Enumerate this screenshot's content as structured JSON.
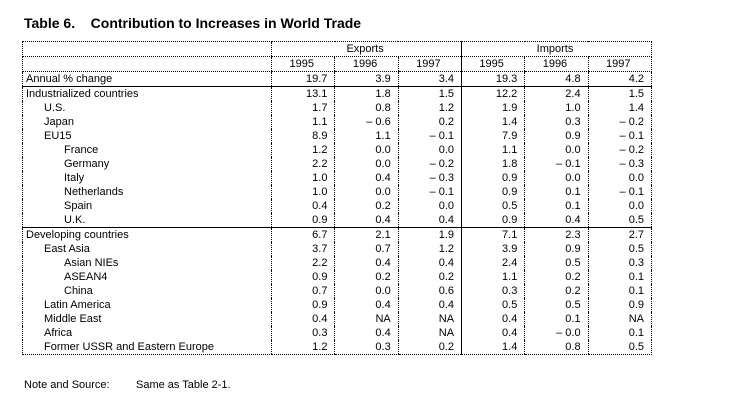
{
  "title": "Table 6.    Contribution to Increases in World Trade",
  "groups": {
    "exports": "Exports",
    "imports": "Imports"
  },
  "years": [
    "1995",
    "1996",
    "1997",
    "1995",
    "1996",
    "1997"
  ],
  "rows": [
    {
      "label": "Annual % change",
      "level": 0,
      "values": [
        "19.7",
        "3.9",
        "3.4",
        "19.3",
        "4.8",
        "4.2"
      ]
    },
    {
      "label": "Industrialized countries",
      "level": 0,
      "values": [
        "13.1",
        "1.8",
        "1.5",
        "12.2",
        "2.4",
        "1.5"
      ]
    },
    {
      "label": "U.S.",
      "level": 1,
      "values": [
        "1.7",
        "0.8",
        "1.2",
        "1.9",
        "1.0",
        "1.4"
      ]
    },
    {
      "label": "Japan",
      "level": 1,
      "values": [
        "1.1",
        "– 0.6",
        "0.2",
        "1.4",
        "0.3",
        "– 0.2"
      ]
    },
    {
      "label": "EU15",
      "level": 1,
      "values": [
        "8.9",
        "1.1",
        "– 0.1",
        "7.9",
        "0.9",
        "– 0.1"
      ]
    },
    {
      "label": "France",
      "level": 2,
      "values": [
        "1.2",
        "0.0",
        "0.0",
        "1.1",
        "0.0",
        "– 0.2"
      ]
    },
    {
      "label": "Germany",
      "level": 2,
      "values": [
        "2.2",
        "0.0",
        "– 0.2",
        "1.8",
        "– 0.1",
        "– 0.3"
      ]
    },
    {
      "label": "Italy",
      "level": 2,
      "values": [
        "1.0",
        "0.4",
        "– 0.3",
        "0.9",
        "0.0",
        "0.0"
      ]
    },
    {
      "label": "Netherlands",
      "level": 2,
      "values": [
        "1.0",
        "0.0",
        "– 0.1",
        "0.9",
        "0.1",
        "– 0.1"
      ]
    },
    {
      "label": "Spain",
      "level": 2,
      "values": [
        "0.4",
        "0.2",
        "0.0",
        "0.5",
        "0.1",
        "0.0"
      ]
    },
    {
      "label": "U.K.",
      "level": 2,
      "values": [
        "0.9",
        "0.4",
        "0.4",
        "0.9",
        "0.4",
        "0.5"
      ]
    },
    {
      "label": "Developing countries",
      "level": 0,
      "values": [
        "6.7",
        "2.1",
        "1.9",
        "7.1",
        "2.3",
        "2.7"
      ]
    },
    {
      "label": "East Asia",
      "level": 1,
      "values": [
        "3.7",
        "0.7",
        "1.2",
        "3.9",
        "0.9",
        "0.5"
      ]
    },
    {
      "label": "Asian NIEs",
      "level": 2,
      "values": [
        "2.2",
        "0.4",
        "0.4",
        "2.4",
        "0.5",
        "0.3"
      ]
    },
    {
      "label": "ASEAN4",
      "level": 2,
      "values": [
        "0.9",
        "0.2",
        "0.2",
        "1.1",
        "0.2",
        "0.1"
      ]
    },
    {
      "label": "China",
      "level": 2,
      "values": [
        "0.7",
        "0.0",
        "0.6",
        "0.3",
        "0.2",
        "0.1"
      ]
    },
    {
      "label": "Latin America",
      "level": 1,
      "values": [
        "0.9",
        "0.4",
        "0.4",
        "0.5",
        "0.5",
        "0.9"
      ]
    },
    {
      "label": "Middle East",
      "level": 1,
      "values": [
        "0.4",
        "NA",
        "NA",
        "0.4",
        "0.1",
        "NA"
      ]
    },
    {
      "label": "Africa",
      "level": 1,
      "values": [
        "0.3",
        "0.4",
        "NA",
        "0.4",
        "– 0.0",
        "0.1"
      ]
    },
    {
      "label": "Former USSR and Eastern Europe",
      "level": 1,
      "values": [
        "1.2",
        "0.3",
        "0.2",
        "1.4",
        "0.8",
        "0.5"
      ]
    }
  ],
  "note": {
    "label": "Note and Source:",
    "text": "Same as Table 2-1."
  }
}
